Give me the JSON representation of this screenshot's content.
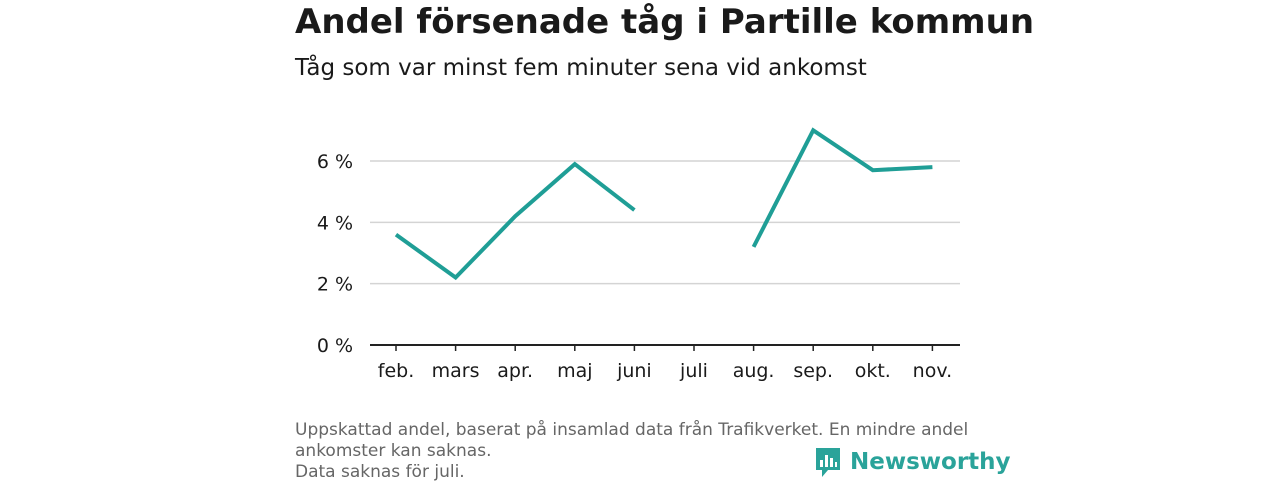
{
  "header": {
    "title": "Andel försenade tåg i Partille kommun",
    "subtitle": "Tåg som var minst fem minuter sena vid ankomst"
  },
  "footnote": {
    "line1": "Uppskattad andel, baserat på insamlad data från Trafikverket. En mindre andel ankomster kan saknas.",
    "line2": "Data saknas för juli."
  },
  "brand": {
    "name": "Newsworthy",
    "icon": "bar-chart-logo-icon",
    "color": "#2aa39a"
  },
  "chart_data": {
    "type": "line",
    "categories": [
      "feb.",
      "mars",
      "apr.",
      "maj",
      "juni",
      "juli",
      "aug.",
      "sep.",
      "okt.",
      "nov."
    ],
    "series": [
      {
        "values": [
          3.6,
          2.2,
          4.2,
          5.9,
          4.4,
          null,
          3.2,
          7.0,
          5.7,
          5.8
        ],
        "color": "#1f9e96"
      }
    ],
    "y_ticks": [
      0,
      2,
      4,
      6
    ],
    "y_tick_labels": [
      "0 %",
      "2 %",
      "4 %",
      "6 %"
    ],
    "ylim": [
      0,
      7.2
    ],
    "grid": true
  }
}
